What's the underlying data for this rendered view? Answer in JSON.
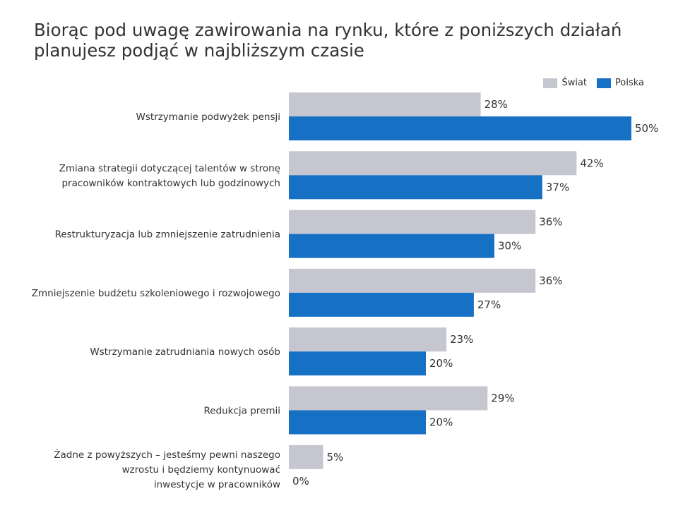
{
  "title_lines": [
    "Biorąc pod uwagę zawirowania na rynku, które z poniższych działań",
    "planujesz podjąć w najbliższym czasie"
  ],
  "legend": {
    "world": "Świat",
    "poland": "Polska"
  },
  "colors": {
    "world": "#c6c6d0",
    "poland": "#1670c4"
  },
  "chart_data": {
    "type": "bar",
    "orientation": "horizontal",
    "categories": [
      [
        "Wstrzymanie podwyżek pensji"
      ],
      [
        "Zmiana strategii dotyczącej talentów w stronę",
        "pracowników kontraktowych lub godzinowych"
      ],
      [
        "Restrukturyzacja lub zmniejszenie zatrudnienia"
      ],
      [
        "Zmniejszenie budżetu szkoleniowego i rozwojowego"
      ],
      [
        "Wstrzymanie zatrudniania nowych osób"
      ],
      [
        "Redukcja premii"
      ],
      [
        "Żadne z powyższych – jesteśmy pewni naszego",
        "wzrostu i będziemy kontynuować",
        "inwestycje w pracowników"
      ]
    ],
    "series": [
      {
        "name": "Świat",
        "values": [
          28,
          42,
          36,
          36,
          23,
          29,
          5
        ]
      },
      {
        "name": "Polska",
        "values": [
          50,
          37,
          30,
          27,
          20,
          20,
          0
        ]
      }
    ],
    "value_suffix": "%",
    "xlim": [
      0,
      50
    ],
    "grid": false,
    "legend_position": "top-right"
  }
}
